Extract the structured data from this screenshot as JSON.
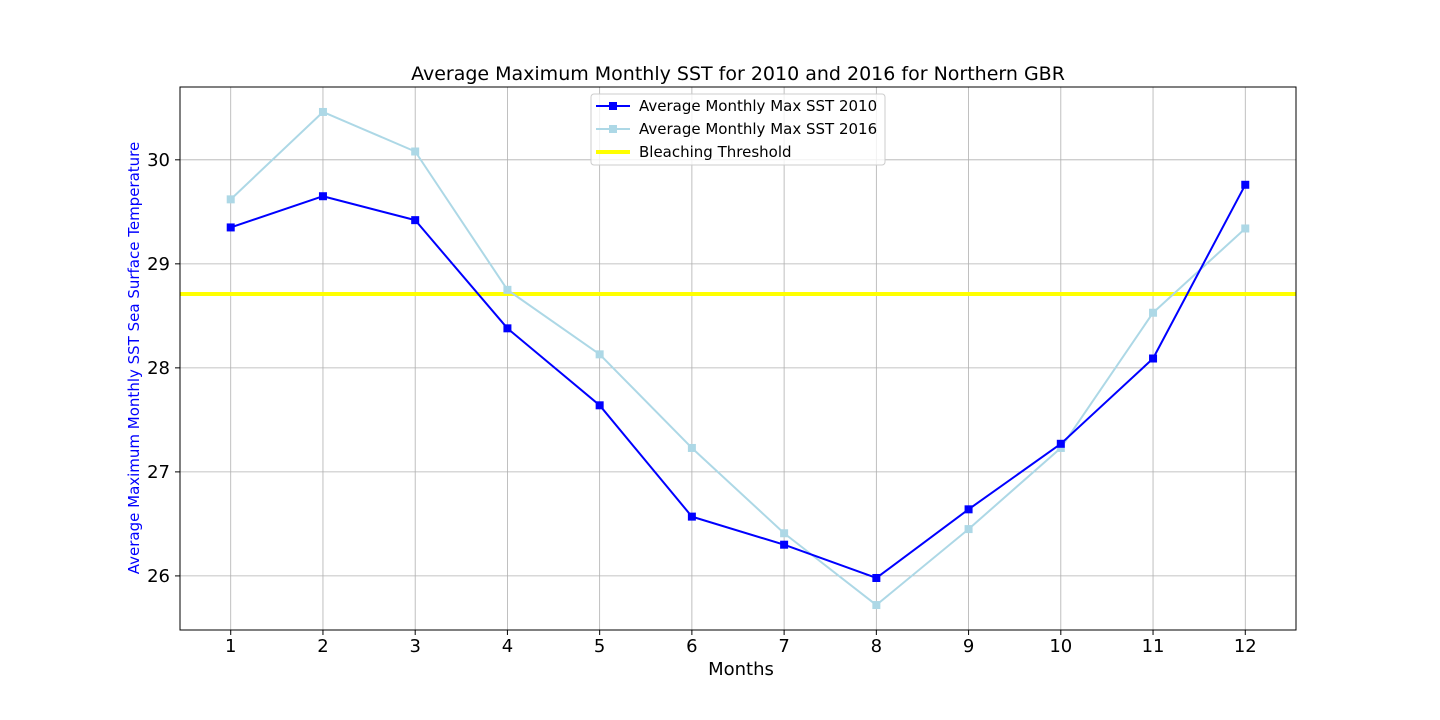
{
  "chart_data": {
    "type": "line",
    "title": "Average Maximum Monthly SST  for 2010 and 2016 for Northern GBR",
    "xlabel": "Months",
    "ylabel": "Average Maximum Monthly SST Sea Surface Temperature",
    "ylabel_color": "#0000ff",
    "x": [
      1,
      2,
      3,
      4,
      5,
      6,
      7,
      8,
      9,
      10,
      11,
      12
    ],
    "xlim": [
      0.45,
      12.55
    ],
    "ylim": [
      25.48,
      30.7
    ],
    "yticks": [
      26,
      27,
      28,
      29,
      30
    ],
    "grid": true,
    "legend_position": "upper center",
    "series": [
      {
        "name": "Average Monthly Max SST 2010",
        "color": "#0000ff",
        "marker": "square",
        "values": [
          29.35,
          29.65,
          29.42,
          28.38,
          27.64,
          26.57,
          26.3,
          25.98,
          26.64,
          27.27,
          28.09,
          29.76
        ]
      },
      {
        "name": "Average Monthly Max SST 2016",
        "color": "#add8e6",
        "marker": "square",
        "values": [
          29.62,
          30.46,
          30.08,
          28.75,
          28.13,
          27.23,
          26.41,
          25.72,
          26.45,
          27.23,
          28.53,
          29.34
        ]
      }
    ],
    "threshold": {
      "name": "Bleaching Threshold",
      "color": "#ffff00",
      "value": 28.71
    }
  }
}
